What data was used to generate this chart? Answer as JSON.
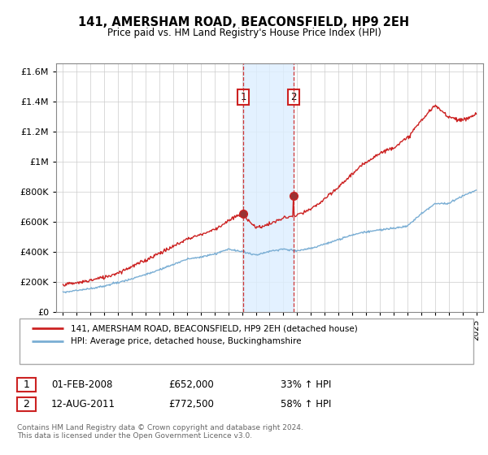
{
  "title": "141, AMERSHAM ROAD, BEACONSFIELD, HP9 2EH",
  "subtitle": "Price paid vs. HM Land Registry's House Price Index (HPI)",
  "legend_line1": "141, AMERSHAM ROAD, BEACONSFIELD, HP9 2EH (detached house)",
  "legend_line2": "HPI: Average price, detached house, Buckinghamshire",
  "footer": "Contains HM Land Registry data © Crown copyright and database right 2024.\nThis data is licensed under the Open Government Licence v3.0.",
  "sale1_date": "01-FEB-2008",
  "sale1_price": "£652,000",
  "sale1_hpi": "33% ↑ HPI",
  "sale1_year": 2008.08,
  "sale1_value": 652000,
  "sale2_date": "12-AUG-2011",
  "sale2_price": "£772,500",
  "sale2_hpi": "58% ↑ HPI",
  "sale2_year": 2011.75,
  "sale2_value": 772500,
  "hpi_color": "#7aaed4",
  "price_color": "#cc2222",
  "shade_color": "#ddeeff",
  "ylim": [
    0,
    1650000
  ],
  "yticks": [
    0,
    200000,
    400000,
    600000,
    800000,
    1000000,
    1200000,
    1400000,
    1600000
  ],
  "ytick_labels": [
    "£0",
    "£200K",
    "£400K",
    "£600K",
    "£800K",
    "£1M",
    "£1.2M",
    "£1.4M",
    "£1.6M"
  ],
  "xlim_start": 1994.5,
  "xlim_end": 2025.5,
  "years_hpi": [
    1995,
    1996,
    1997,
    1998,
    1999,
    2000,
    2001,
    2002,
    2003,
    2004,
    2005,
    2006,
    2007,
    2008,
    2009,
    2010,
    2011,
    2012,
    2013,
    2014,
    2015,
    2016,
    2017,
    2018,
    2019,
    2020,
    2021,
    2022,
    2023,
    2024,
    2025
  ],
  "hpi_values": [
    128000,
    140000,
    155000,
    170000,
    195000,
    220000,
    248000,
    280000,
    315000,
    350000,
    365000,
    385000,
    415000,
    400000,
    375000,
    400000,
    415000,
    405000,
    420000,
    450000,
    480000,
    510000,
    530000,
    545000,
    555000,
    570000,
    650000,
    720000,
    720000,
    770000,
    810000
  ],
  "price_values": [
    175000,
    185000,
    205000,
    225000,
    255000,
    295000,
    335000,
    385000,
    430000,
    480000,
    510000,
    545000,
    600000,
    652000,
    555000,
    580000,
    620000,
    640000,
    680000,
    750000,
    830000,
    920000,
    1000000,
    1060000,
    1100000,
    1160000,
    1280000,
    1380000,
    1310000,
    1280000,
    1320000
  ]
}
